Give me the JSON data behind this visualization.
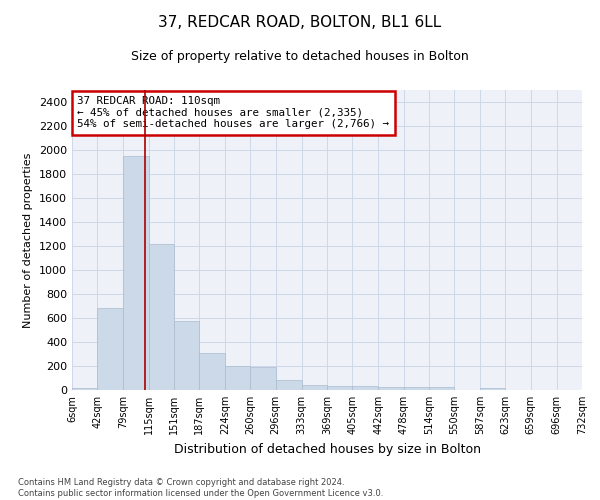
{
  "title": "37, REDCAR ROAD, BOLTON, BL1 6LL",
  "subtitle": "Size of property relative to detached houses in Bolton",
  "xlabel": "Distribution of detached houses by size in Bolton",
  "ylabel": "Number of detached properties",
  "bar_color": "#ccd9e8",
  "bar_edge_color": "#aabcd0",
  "annotation_box_color": "#cc0000",
  "property_line_color": "#aa0000",
  "property_value": 110,
  "annotation_line1": "37 REDCAR ROAD: 110sqm",
  "annotation_line2": "← 45% of detached houses are smaller (2,335)",
  "annotation_line3": "54% of semi-detached houses are larger (2,766) →",
  "bin_edges": [
    6,
    42,
    79,
    115,
    151,
    187,
    224,
    260,
    296,
    333,
    369,
    405,
    442,
    478,
    514,
    550,
    587,
    623,
    659,
    696,
    732
  ],
  "bar_heights": [
    18,
    680,
    1950,
    1220,
    575,
    305,
    200,
    195,
    80,
    42,
    35,
    35,
    28,
    25,
    22,
    0,
    18,
    0,
    0,
    0
  ],
  "ylim": [
    0,
    2500
  ],
  "yticks": [
    0,
    200,
    400,
    600,
    800,
    1000,
    1200,
    1400,
    1600,
    1800,
    2000,
    2200,
    2400
  ],
  "grid_color": "#cdd8e8",
  "background_color": "#eef2f8",
  "footer_text": "Contains HM Land Registry data © Crown copyright and database right 2024.\nContains public sector information licensed under the Open Government Licence v3.0.",
  "title_fontsize": 11,
  "subtitle_fontsize": 9,
  "ylabel_fontsize": 8,
  "xlabel_fontsize": 9,
  "ytick_fontsize": 8,
  "xtick_fontsize": 7
}
